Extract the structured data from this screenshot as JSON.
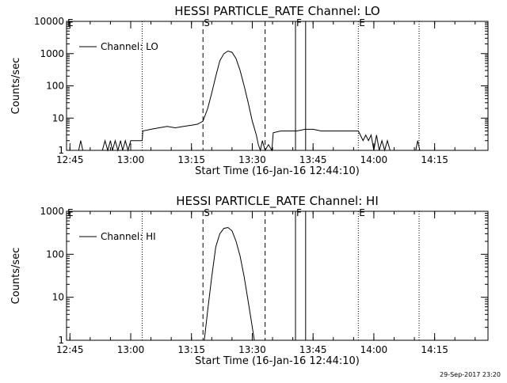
{
  "footer": {
    "timestamp": "29-Sep-2017 23:20"
  },
  "chart_data": [
    {
      "type": "line",
      "title": "HESSI PARTICLE_RATE Channel: LO",
      "xlabel": "Start Time (16-Jan-16 12:44:10)",
      "ylabel": "Counts/sec",
      "yscale": "log",
      "ylim": [
        1,
        10000
      ],
      "yticks": [
        "1",
        "10",
        "100",
        "1000",
        "10000"
      ],
      "xlim_minutes": [
        0,
        104
      ],
      "xtick_labels": [
        "12:45",
        "13:00",
        "13:15",
        "13:30",
        "13:45",
        "14:00",
        "14:15"
      ],
      "legend": {
        "position": "top-left",
        "entries": [
          "Channel: LO"
        ]
      },
      "markers": [
        {
          "label": "E",
          "t": "12:44:10",
          "style": "dotted"
        },
        {
          "label": "",
          "t": "13:02:50",
          "style": "dotted"
        },
        {
          "label": "S",
          "t": "13:17:50",
          "style": "dashed"
        },
        {
          "label": "",
          "t": "13:33:10",
          "style": "dashed"
        },
        {
          "label": "F",
          "t": "13:40:40",
          "style": "solid"
        },
        {
          "label": "",
          "t": "13:43:10",
          "style": "solid"
        },
        {
          "label": "E",
          "t": "13:56:10",
          "style": "dotted"
        },
        {
          "label": "",
          "t": "14:11:10",
          "style": "dotted"
        }
      ],
      "series": [
        {
          "x": [
            "12:47:10",
            "12:47:40",
            "12:48:10",
            "12:53:00",
            "12:53:40",
            "12:54:20",
            "12:55:00",
            "12:55:30",
            "12:56:10",
            "12:56:50",
            "12:57:30",
            "12:58:00",
            "12:58:40",
            "12:59:20",
            "13:00:00",
            "13:02:50",
            "13:03:00",
            "13:05:00",
            "13:07:00",
            "13:09:00",
            "13:11:00",
            "13:13:00",
            "13:15:00",
            "13:16:30",
            "13:17:50",
            "13:19:00",
            "13:20:00",
            "13:21:00",
            "13:22:00",
            "13:23:00",
            "13:24:00",
            "13:25:00",
            "13:26:00",
            "13:27:00",
            "13:28:00",
            "13:29:00",
            "13:30:00",
            "13:31:00",
            "13:31:30",
            "13:32:00",
            "13:32:30",
            "13:33:10",
            "13:34:00",
            "13:34:50",
            "13:35:10",
            "13:37:00",
            "13:39:00",
            "13:41:00",
            "13:43:00",
            "13:45:00",
            "13:47:00",
            "13:49:00",
            "13:51:00",
            "13:53:00",
            "13:55:00",
            "13:56:10",
            "13:56:40",
            "13:57:20",
            "13:58:00",
            "13:58:40",
            "13:59:20",
            "14:00:00",
            "14:00:40",
            "14:01:20",
            "14:02:00",
            "14:02:40",
            "14:03:20",
            "14:04:00",
            "14:10:20",
            "14:10:50",
            "14:11:20"
          ],
          "y": [
            1,
            2,
            1,
            1,
            2,
            1,
            2,
            1,
            2,
            1,
            2,
            1,
            2,
            1,
            2,
            2,
            4,
            4.5,
            5,
            5.5,
            5,
            5.5,
            6,
            6.5,
            8,
            20,
            60,
            200,
            600,
            1000,
            1200,
            1100,
            700,
            300,
            100,
            30,
            8,
            3,
            1.5,
            1,
            2,
            1,
            1.5,
            1,
            3.5,
            4,
            4,
            4,
            4.5,
            4.5,
            4,
            4,
            4,
            4,
            4,
            4,
            3,
            2,
            3,
            2,
            3,
            1,
            3,
            1,
            2,
            1,
            2,
            1,
            1,
            2,
            1
          ]
        }
      ]
    },
    {
      "type": "line",
      "title": "HESSI PARTICLE_RATE Channel: HI",
      "xlabel": "Start Time (16-Jan-16 12:44:10)",
      "ylabel": "Counts/sec",
      "yscale": "log",
      "ylim": [
        1,
        1000
      ],
      "yticks": [
        "1",
        "10",
        "100",
        "1000"
      ],
      "xlim_minutes": [
        0,
        104
      ],
      "xtick_labels": [
        "12:45",
        "13:00",
        "13:15",
        "13:30",
        "13:45",
        "14:00",
        "14:15"
      ],
      "legend": {
        "position": "top-left",
        "entries": [
          "Channel: HI"
        ]
      },
      "markers": [
        {
          "label": "E",
          "t": "12:44:10",
          "style": "dotted"
        },
        {
          "label": "",
          "t": "13:02:50",
          "style": "dotted"
        },
        {
          "label": "S",
          "t": "13:17:50",
          "style": "dashed"
        },
        {
          "label": "",
          "t": "13:33:10",
          "style": "dashed"
        },
        {
          "label": "F",
          "t": "13:40:40",
          "style": "solid"
        },
        {
          "label": "",
          "t": "13:43:10",
          "style": "solid"
        },
        {
          "label": "E",
          "t": "13:56:10",
          "style": "dotted"
        },
        {
          "label": "",
          "t": "14:11:10",
          "style": "dotted"
        }
      ],
      "series": [
        {
          "x": [
            "13:18:10",
            "13:19:00",
            "13:20:00",
            "13:21:00",
            "13:22:00",
            "13:23:00",
            "13:24:00",
            "13:25:00",
            "13:26:00",
            "13:27:00",
            "13:28:00",
            "13:29:00",
            "13:30:00",
            "13:30:30"
          ],
          "y": [
            1,
            5,
            30,
            150,
            300,
            400,
            420,
            350,
            200,
            90,
            30,
            8,
            2,
            1
          ]
        }
      ]
    }
  ]
}
